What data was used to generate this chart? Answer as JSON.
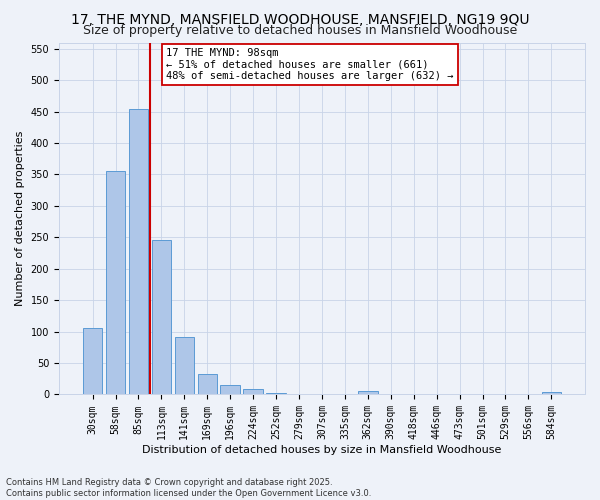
{
  "title": "17, THE MYND, MANSFIELD WOODHOUSE, MANSFIELD, NG19 9QU",
  "subtitle": "Size of property relative to detached houses in Mansfield Woodhouse",
  "xlabel": "Distribution of detached houses by size in Mansfield Woodhouse",
  "ylabel": "Number of detached properties",
  "footnote1": "Contains HM Land Registry data © Crown copyright and database right 2025.",
  "footnote2": "Contains public sector information licensed under the Open Government Licence v3.0.",
  "annotation_title": "17 THE MYND: 98sqm",
  "annotation_line1": "← 51% of detached houses are smaller (661)",
  "annotation_line2": "48% of semi-detached houses are larger (632) →",
  "bar_labels": [
    "30sqm",
    "58sqm",
    "85sqm",
    "113sqm",
    "141sqm",
    "169sqm",
    "196sqm",
    "224sqm",
    "252sqm",
    "279sqm",
    "307sqm",
    "335sqm",
    "362sqm",
    "390sqm",
    "418sqm",
    "446sqm",
    "473sqm",
    "501sqm",
    "529sqm",
    "556sqm",
    "584sqm"
  ],
  "bar_values": [
    105,
    356,
    454,
    245,
    91,
    33,
    15,
    9,
    3,
    0,
    0,
    0,
    5,
    0,
    0,
    0,
    0,
    0,
    0,
    0,
    4
  ],
  "bar_color": "#aec6e8",
  "bar_edge_color": "#5b9bd5",
  "vline_x": 2.5,
  "vline_color": "#cc0000",
  "ylim": [
    0,
    560
  ],
  "yticks": [
    0,
    50,
    100,
    150,
    200,
    250,
    300,
    350,
    400,
    450,
    500,
    550
  ],
  "bg_color": "#eef2f9",
  "grid_color": "#c8d4e8",
  "title_fontsize": 10,
  "subtitle_fontsize": 9,
  "label_fontsize": 8,
  "tick_fontsize": 7,
  "annot_fontsize": 7.5
}
